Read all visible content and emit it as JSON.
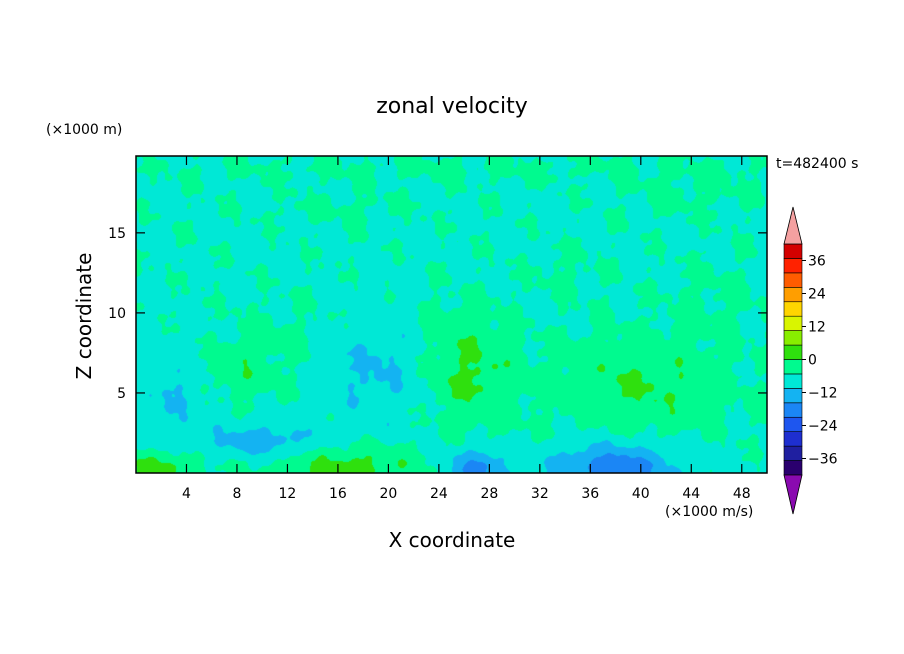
{
  "chart_data": {
    "type": "heatmap",
    "title": "zonal velocity",
    "xlabel": "X coordinate",
    "ylabel": "Z coordinate",
    "x_unit": "(×1000 m/s)",
    "y_unit": "(×1000 m)",
    "time_label": "t=482400 s",
    "xlim": [
      0,
      50
    ],
    "ylim": [
      0,
      19.8
    ],
    "x_ticks": [
      4,
      8,
      12,
      16,
      20,
      24,
      28,
      32,
      36,
      40,
      44,
      48
    ],
    "y_ticks": [
      5,
      10,
      15
    ],
    "colorbar": {
      "min": -42,
      "max": 42,
      "step": 6,
      "labels": [
        36,
        24,
        12,
        0,
        -12,
        -24,
        -36
      ],
      "colors": [
        "#2a006e",
        "#1f1fa0",
        "#1e2fd0",
        "#1e56ef",
        "#1b86f5",
        "#14b3f2",
        "#00e8d6",
        "#00fa8f",
        "#2fe00e",
        "#88ee00",
        "#d9f500",
        "#ffd500",
        "#ff9e00",
        "#ff5c00",
        "#ff2200",
        "#d40000"
      ],
      "under_color": "#8a0ab0",
      "over_color": "#f4a0a0"
    },
    "field_background_value": 0,
    "features": [
      {
        "x": 2,
        "z": 0.3,
        "rx": 3,
        "rz": 1.0,
        "value": 10
      },
      {
        "x": 17,
        "z": 0.4,
        "rx": 6,
        "rz": 1.2,
        "value": 9
      },
      {
        "x": 27,
        "z": 0.3,
        "rx": 2.5,
        "rz": 1.2,
        "value": -13
      },
      {
        "x": 38,
        "z": 0.3,
        "rx": 5,
        "rz": 1.5,
        "value": -15
      },
      {
        "x": 10,
        "z": 2.0,
        "rx": 4,
        "rz": 1.0,
        "value": -9
      },
      {
        "x": 19,
        "z": 6.5,
        "rx": 4,
        "rz": 3.5,
        "value": -6
      },
      {
        "x": 3,
        "z": 5.0,
        "rx": 3,
        "rz": 3.0,
        "value": -5
      },
      {
        "x": 8,
        "z": 6.3,
        "rx": 3,
        "rz": 1.8,
        "value": 5
      },
      {
        "x": 26.5,
        "z": 6.0,
        "rx": 3.5,
        "rz": 3.0,
        "value": 8
      },
      {
        "x": 40,
        "z": 5.5,
        "rx": 7,
        "rz": 3.0,
        "value": 7
      },
      {
        "x": 12,
        "z": 8.5,
        "rx": 5,
        "rz": 2.5,
        "value": 2
      },
      {
        "x": 25,
        "z": 9.5,
        "rx": 4,
        "rz": 2.0,
        "value": 2
      },
      {
        "x": 34,
        "z": 12.5,
        "rx": 3,
        "rz": 1.5,
        "value": 2
      },
      {
        "x": 46,
        "z": 11.0,
        "rx": 4,
        "rz": 2.5,
        "value": 2
      },
      {
        "x": 16,
        "z": 16.5,
        "rx": 6,
        "rz": 1.0,
        "value": 2
      },
      {
        "x": 44,
        "z": 17.5,
        "rx": 6,
        "rz": 1.5,
        "value": 2
      },
      {
        "x": 25,
        "z": 19.0,
        "rx": 25,
        "rz": 0.8,
        "value": 2
      }
    ]
  }
}
